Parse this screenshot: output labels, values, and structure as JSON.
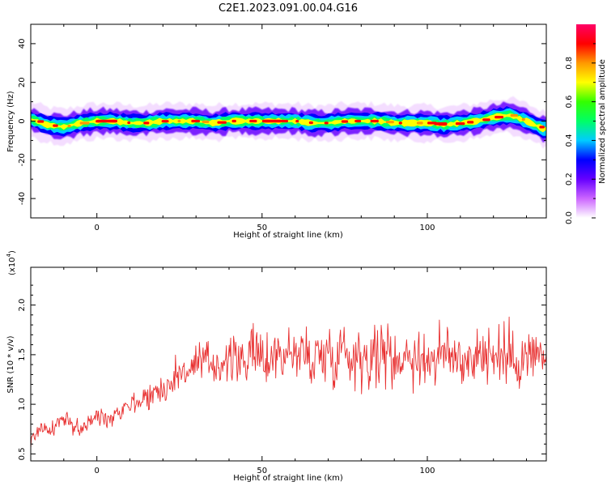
{
  "title": "C2E1.2023.091.00.04.G16",
  "chart_data": [
    {
      "type": "heatmap",
      "xlabel": "Height of straight line (km)",
      "ylabel": "Frequency (Hz)",
      "xlim": [
        -20,
        136
      ],
      "ylim": [
        -50,
        50
      ],
      "xticks": [
        0,
        50,
        100
      ],
      "yticks": [
        -40,
        -20,
        0,
        20,
        40
      ],
      "grid": false,
      "colorbar": {
        "label": "Normalized spectral amplitude",
        "range": [
          0.0,
          1.0
        ],
        "ticks": [
          "0.0",
          "0.2",
          "0.4",
          "0.6",
          "0.8"
        ],
        "colors": [
          "#ffffff",
          "#cc66ff",
          "#6600ff",
          "#0000ff",
          "#00ccff",
          "#00ff66",
          "#33ff00",
          "#ffff00",
          "#ff9900",
          "#ff0000",
          "#ff0066"
        ]
      },
      "ridge": {
        "x": [
          -20,
          -15,
          -10,
          -5,
          0,
          5,
          10,
          15,
          20,
          25,
          30,
          35,
          40,
          45,
          50,
          55,
          60,
          65,
          70,
          75,
          80,
          85,
          90,
          95,
          100,
          105,
          110,
          115,
          120,
          125,
          130,
          135
        ],
        "y": [
          1,
          -2,
          -3,
          -1,
          0,
          0,
          -1,
          -1,
          0,
          0,
          0,
          -1,
          0,
          0,
          0,
          0,
          0,
          -1,
          -1,
          0,
          0,
          0,
          -1,
          -1,
          -1,
          -2,
          -1,
          0,
          2,
          3,
          0,
          -4
        ]
      }
    },
    {
      "type": "line",
      "xlabel": "Height of straight line (km)",
      "ylabel": "SNR (10 * v/v)",
      "multiplier": "(x10",
      "multiplier_exp": "4",
      "xlim": [
        -20,
        136
      ],
      "ylim": [
        0.43,
        2.38
      ],
      "xticks": [
        0,
        50,
        100
      ],
      "yticks": [
        "0.5",
        "1.0",
        "1.5",
        "2.0"
      ],
      "series": [
        {
          "color": "#e83030",
          "x": [
            -20,
            -17,
            -14,
            -11,
            -8,
            -5,
            -2,
            0,
            3,
            6,
            9,
            12,
            15,
            18,
            21,
            24,
            27,
            30,
            33,
            36,
            39,
            42,
            45,
            48,
            51,
            54,
            57,
            60,
            63,
            66,
            69,
            72,
            75,
            78,
            81,
            84,
            87,
            90,
            93,
            96,
            99,
            102,
            105,
            108,
            111,
            114,
            117,
            120,
            123,
            126,
            129,
            132,
            135
          ],
          "y": [
            0.62,
            0.78,
            0.72,
            0.85,
            0.8,
            0.75,
            0.82,
            0.88,
            0.86,
            0.92,
            1.0,
            1.02,
            1.08,
            1.12,
            1.18,
            1.28,
            1.35,
            1.38,
            1.42,
            1.4,
            1.45,
            1.43,
            1.48,
            1.5,
            1.46,
            1.5,
            1.52,
            1.5,
            1.5,
            1.47,
            1.5,
            1.52,
            1.55,
            1.48,
            1.5,
            1.48,
            1.52,
            1.45,
            1.5,
            1.48,
            1.45,
            1.47,
            1.5,
            1.48,
            1.45,
            1.5,
            1.52,
            1.48,
            1.5,
            1.45,
            1.48,
            1.5,
            1.45
          ],
          "noise": [
            0.1,
            0.12,
            0.12,
            0.14,
            0.14,
            0.12,
            0.12,
            0.14,
            0.14,
            0.15,
            0.15,
            0.18,
            0.2,
            0.22,
            0.25,
            0.28,
            0.3,
            0.3,
            0.32,
            0.32,
            0.35,
            0.35,
            0.38,
            0.4,
            0.4,
            0.42,
            0.42,
            0.42,
            0.45,
            0.45,
            0.45,
            0.5,
            0.5,
            0.48,
            0.48,
            0.48,
            0.48,
            0.46,
            0.46,
            0.46,
            0.45,
            0.45,
            0.45,
            0.45,
            0.45,
            0.46,
            0.46,
            0.46,
            0.45,
            0.45,
            0.45,
            0.45,
            0.42
          ]
        }
      ]
    }
  ]
}
